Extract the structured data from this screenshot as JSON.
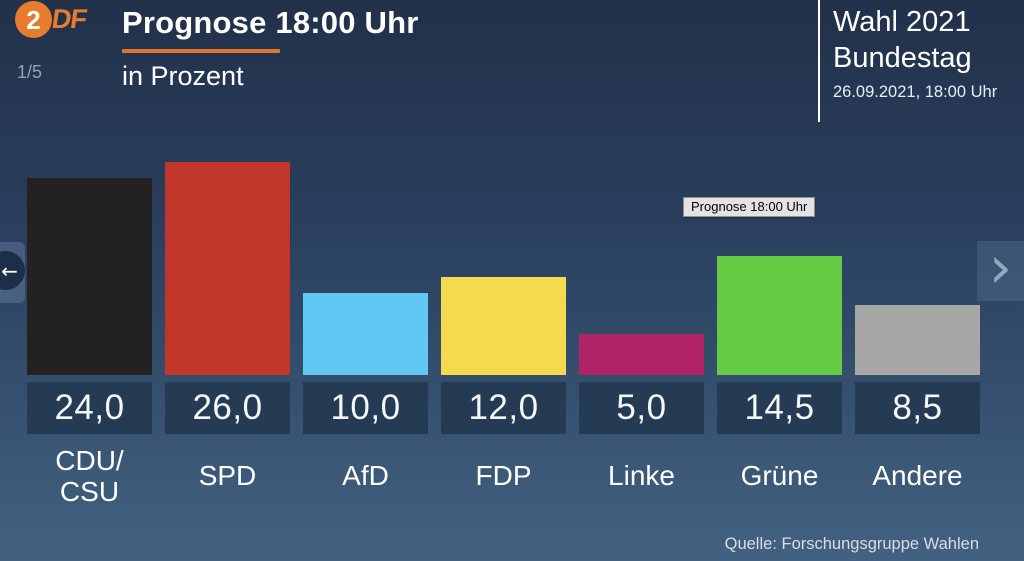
{
  "header": {
    "logo_digit": "2",
    "logo_rest": "DF",
    "page_indicator": "1/5",
    "title": "Prognose 18:00 Uhr",
    "subtitle": "in Prozent",
    "accent_color": "#e0762e"
  },
  "info_panel": {
    "title_line1": "Wahl 2021",
    "title_line2": "Bundestag",
    "datetime": "26.09.2021, 18:00 Uhr"
  },
  "tooltip": {
    "text": "Prognose 18:00 Uhr"
  },
  "nav": {
    "prev_icon": "←",
    "next_icon": "›"
  },
  "source": "Quelle: Forschungsgruppe Wahlen",
  "chart_data": {
    "type": "bar",
    "title": "Prognose 18:00 Uhr",
    "subtitle": "in Prozent",
    "unit": "Prozent",
    "categories": [
      "CDU/CSU",
      "SPD",
      "AfD",
      "FDP",
      "Linke",
      "Grüne",
      "Andere"
    ],
    "category_labels": [
      "CDU/\nCSU",
      "SPD",
      "AfD",
      "FDP",
      "Linke",
      "Grüne",
      "Andere"
    ],
    "values": [
      24.0,
      26.0,
      10.0,
      12.0,
      5.0,
      14.5,
      8.5
    ],
    "display_values": [
      "24,0",
      "26,0",
      "10,0",
      "12,0",
      "5,0",
      "14,5",
      "8,5"
    ],
    "bar_colors": [
      "#232122",
      "#c2352a",
      "#60c8f2",
      "#f3da4e",
      "#b02366",
      "#65cb44",
      "#a7a7a5"
    ],
    "value_box_color": "#253a53",
    "ylim": [
      0,
      26
    ],
    "grid": false,
    "legend": "none",
    "source": "Forschungsgruppe Wahlen"
  }
}
